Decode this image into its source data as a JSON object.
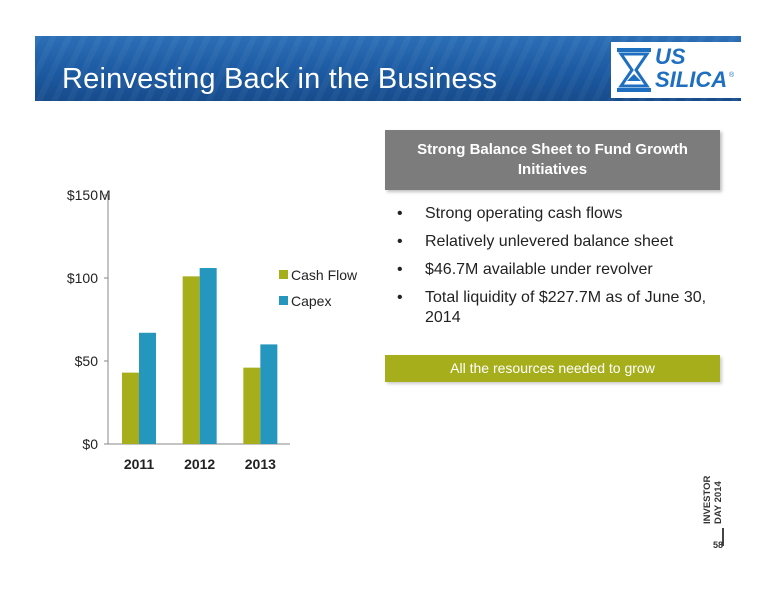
{
  "header": {
    "title": "Reinvesting Back in the Business",
    "logo_line1": "US",
    "logo_line2": "SILICA",
    "logo_reg": "®",
    "banner_color": "#1c5aa2"
  },
  "chart_data": {
    "type": "bar",
    "categories": [
      "2011",
      "2012",
      "2013"
    ],
    "series": [
      {
        "name": "Cash Flow",
        "values": [
          43,
          101,
          46
        ],
        "color": "#a6af1b"
      },
      {
        "name": "Capex",
        "values": [
          67,
          106,
          60
        ],
        "color": "#2596be"
      }
    ],
    "y_ticks": [
      "$0",
      "$50",
      "$100",
      "$150"
    ],
    "y_tick_values": [
      0,
      50,
      100,
      150
    ],
    "ylim": [
      0,
      150
    ],
    "unit_label": "M",
    "legend_position": "right",
    "grid": false
  },
  "panel": {
    "header": "Strong Balance Sheet to Fund Growth Initiatives",
    "bullet_marker": "•",
    "bullets": [
      "Strong operating cash flows",
      "Relatively unlevered balance sheet",
      "$46.7M available under revolver",
      "Total liquidity of $227.7M as of June 30, 2014"
    ],
    "tagline": "All the resources needed to grow"
  },
  "footer": {
    "event_line1": "INVESTOR",
    "event_line2": "DAY 2014",
    "page_number": "58"
  }
}
